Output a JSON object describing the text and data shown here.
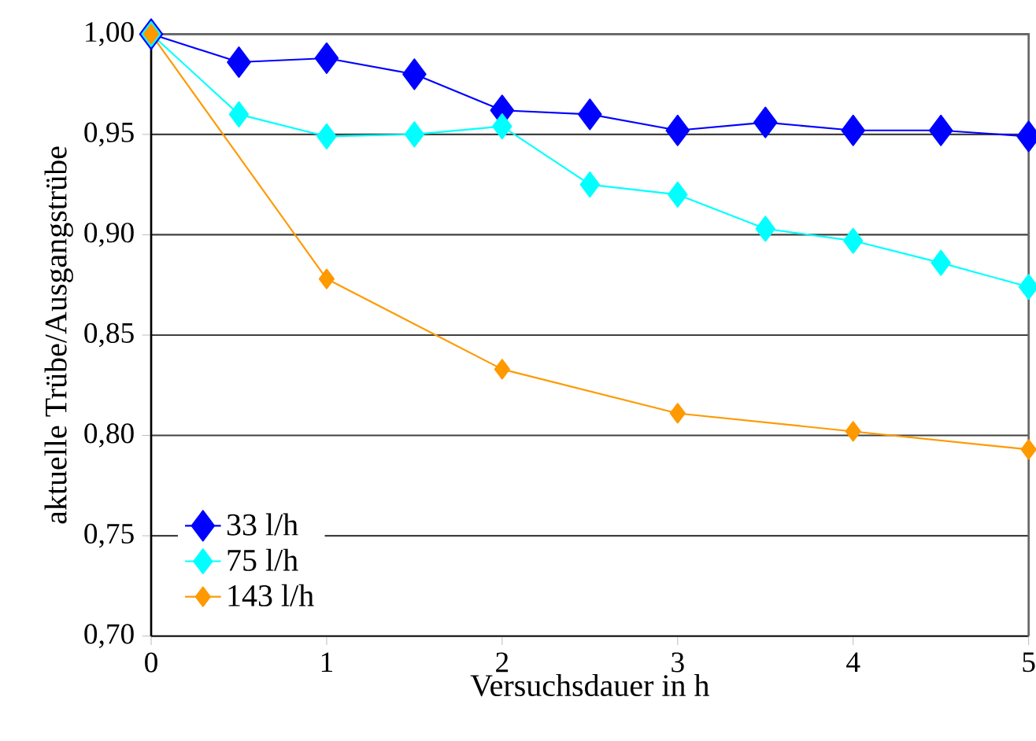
{
  "chart_data": {
    "type": "line",
    "xlabel": "Versuchsdauer in h",
    "ylabel": "aktuelle Trübe/Ausgangstrübe",
    "xlim": [
      0,
      5
    ],
    "xticks": [
      0,
      1,
      2,
      3,
      4,
      5
    ],
    "ylim": [
      0.7,
      1.0
    ],
    "yticks": [
      {
        "value": 0.7,
        "label": "0,70"
      },
      {
        "value": 0.75,
        "label": "0,75"
      },
      {
        "value": 0.8,
        "label": "0,80"
      },
      {
        "value": 0.85,
        "label": "0,85"
      },
      {
        "value": 0.9,
        "label": "0,90"
      },
      {
        "value": 0.95,
        "label": "0,95"
      },
      {
        "value": 1.0,
        "label": "1,00"
      }
    ],
    "grid": "y",
    "legend": "bottom left",
    "marker": "diamond",
    "line_style": "solid",
    "series": [
      {
        "name": "33 l/h",
        "color": "#0000ff",
        "x": [
          0,
          0.5,
          1,
          1.5,
          2,
          2.5,
          3,
          3.5,
          4,
          4.5,
          5
        ],
        "values": [
          1.0,
          0.986,
          0.988,
          0.98,
          0.962,
          0.96,
          0.952,
          0.956,
          0.952,
          0.952,
          0.949
        ]
      },
      {
        "name": "75 l/h",
        "color": "#00ffff",
        "x": [
          0,
          0.5,
          1,
          1.5,
          2,
          2.5,
          3,
          3.5,
          4,
          4.5,
          5
        ],
        "values": [
          1.0,
          0.96,
          0.949,
          0.95,
          0.954,
          0.925,
          0.92,
          0.903,
          0.897,
          0.886,
          0.874
        ]
      },
      {
        "name": "143 l/h",
        "color": "#ff9900",
        "x": [
          0,
          1,
          2,
          3,
          4,
          5
        ],
        "values": [
          1.0,
          0.878,
          0.833,
          0.811,
          0.802,
          0.793
        ]
      }
    ]
  }
}
